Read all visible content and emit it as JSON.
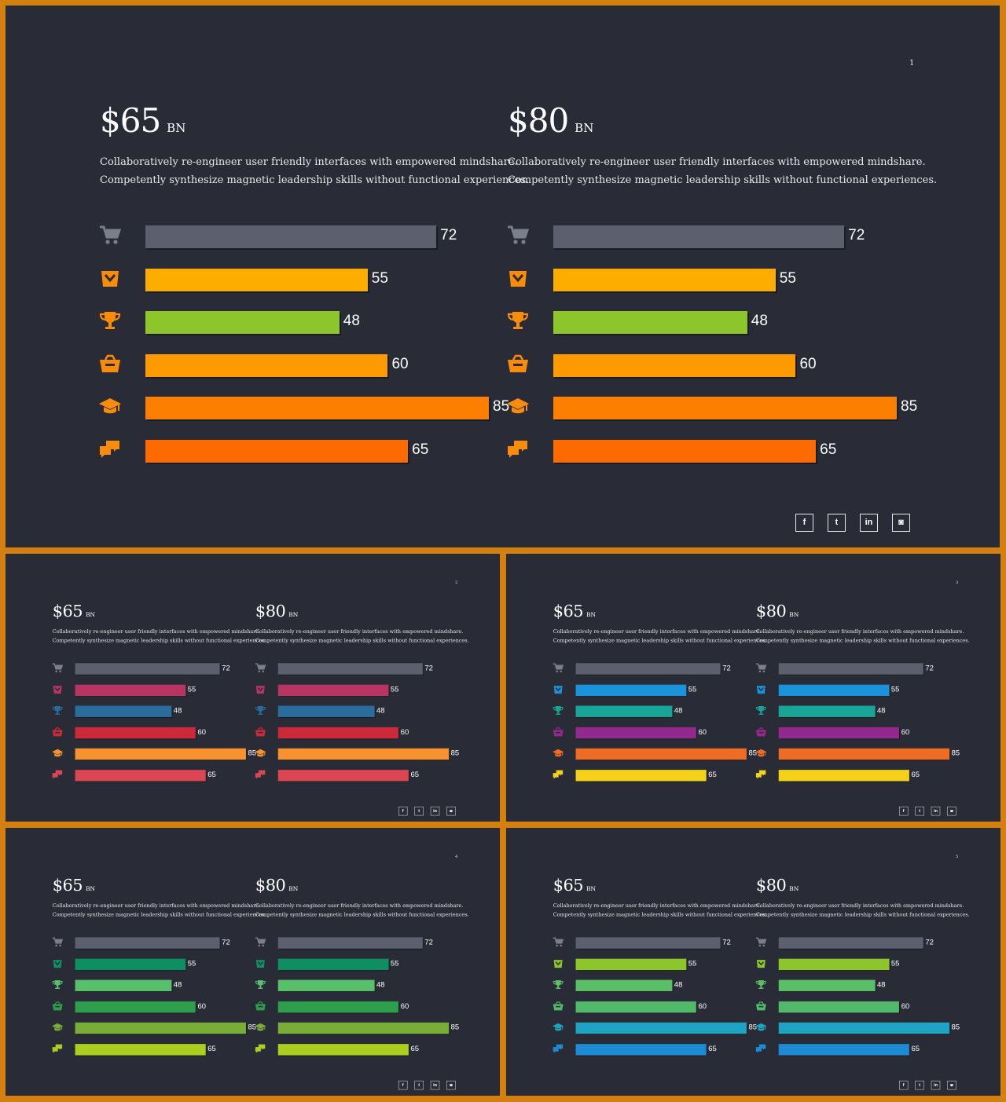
{
  "slides": [
    {
      "page": "1",
      "palette": {
        "colors": [
          "#5b5f6e",
          "#fdac00",
          "#8cc62b",
          "#fd9a00",
          "#fd7f00",
          "#fd6b00"
        ],
        "icon_tint": "#fb8b0a",
        "cart_tint": "#7b7f8c"
      },
      "panels": [
        {
          "value": "$65",
          "unit": "BN",
          "text": [
            "Collaboratively re-engineer user friendly interfaces with empowered mindshare.",
            "Competently synthesize magnetic leadership skills without functional experiences."
          ]
        },
        {
          "value": "$80",
          "unit": "BN",
          "text": [
            "Collaboratively re-engineer user friendly interfaces with empowered mindshare.",
            "Competently synthesize magnetic leadership skills without functional experiences."
          ]
        }
      ]
    },
    {
      "page": "2",
      "palette": {
        "colors": [
          "#5b5f6e",
          "#b83462",
          "#2a6d9d",
          "#cc2a3a",
          "#f7922f",
          "#dc4552"
        ],
        "icon_tint": null,
        "cart_tint": "#7b7f8c"
      },
      "panels": [
        {
          "value": "$65",
          "unit": "BN",
          "text": [
            "Collaboratively re-engineer user friendly interfaces with empowered mindshare.",
            "Competently synthesize magnetic leadership skills without functional experiences."
          ]
        },
        {
          "value": "$80",
          "unit": "BN",
          "text": [
            "Collaboratively re-engineer user friendly interfaces with empowered mindshare.",
            "Competently synthesize magnetic leadership skills without functional experiences."
          ]
        }
      ]
    },
    {
      "page": "3",
      "palette": {
        "colors": [
          "#5b5f6e",
          "#1a93da",
          "#16a596",
          "#93288f",
          "#ef6c24",
          "#f5d21a"
        ],
        "icon_tint": null,
        "cart_tint": "#7b7f8c"
      },
      "panels": [
        {
          "value": "$65",
          "unit": "BN",
          "text": [
            "Collaboratively re-engineer user friendly interfaces with empowered mindshare.",
            "Competently synthesize magnetic leadership skills without functional experiences."
          ]
        },
        {
          "value": "$80",
          "unit": "BN",
          "text": [
            "Collaboratively re-engineer user friendly interfaces with empowered mindshare.",
            "Competently synthesize magnetic leadership skills without functional experiences."
          ]
        }
      ]
    },
    {
      "page": "4",
      "palette": {
        "colors": [
          "#5b5f6e",
          "#0e8f61",
          "#58bf6a",
          "#2d9e4b",
          "#7aad37",
          "#acce1f"
        ],
        "icon_tint": null,
        "cart_tint": "#7b7f8c"
      },
      "panels": [
        {
          "value": "$65",
          "unit": "BN",
          "text": [
            "Collaboratively re-engineer user friendly interfaces with empowered mindshare.",
            "Competently synthesize magnetic leadership skills without functional experiences."
          ]
        },
        {
          "value": "$80",
          "unit": "BN",
          "text": [
            "Collaboratively re-engineer user friendly interfaces with empowered mindshare.",
            "Competently synthesize magnetic leadership skills without functional experiences."
          ]
        }
      ]
    },
    {
      "page": "5",
      "palette": {
        "colors": [
          "#5b5f6e",
          "#8cc62b",
          "#5bbf68",
          "#52b96a",
          "#1fa3c2",
          "#1c8ad4"
        ],
        "icon_tint": null,
        "cart_tint": "#7b7f8c"
      },
      "panels": [
        {
          "value": "$65",
          "unit": "BN",
          "text": [
            "Collaboratively re-engineer user friendly interfaces with empowered mindshare.",
            "Competently synthesize magnetic leadership skills without functional experiences."
          ]
        },
        {
          "value": "$80",
          "unit": "BN",
          "text": [
            "Collaboratively re-engineer user friendly interfaces with empowered mindshare.",
            "Competently synthesize magnetic leadership skills without functional experiences."
          ]
        }
      ]
    }
  ],
  "row_icons": [
    "cart-icon",
    "bag-icon",
    "trophy-icon",
    "basket-icon",
    "graduation-cap-icon",
    "chat-icon"
  ],
  "social_icons": [
    {
      "name": "facebook-icon",
      "glyph": "f"
    },
    {
      "name": "twitter-icon",
      "glyph": "t"
    },
    {
      "name": "linkedin-icon",
      "glyph": "in"
    },
    {
      "name": "instagram-icon",
      "glyph": "◙"
    }
  ],
  "chart_data": [
    {
      "type": "bar",
      "orientation": "horizontal",
      "categories": [
        "cart",
        "bag",
        "trophy",
        "basket",
        "graduation-cap",
        "chat"
      ],
      "values": [
        72,
        55,
        48,
        60,
        85,
        65
      ],
      "title": "$65 BN"
    },
    {
      "type": "bar",
      "orientation": "horizontal",
      "categories": [
        "cart",
        "bag",
        "trophy",
        "basket",
        "graduation-cap",
        "chat"
      ],
      "values": [
        72,
        55,
        48,
        60,
        85,
        65
      ],
      "title": "$80 BN"
    }
  ]
}
